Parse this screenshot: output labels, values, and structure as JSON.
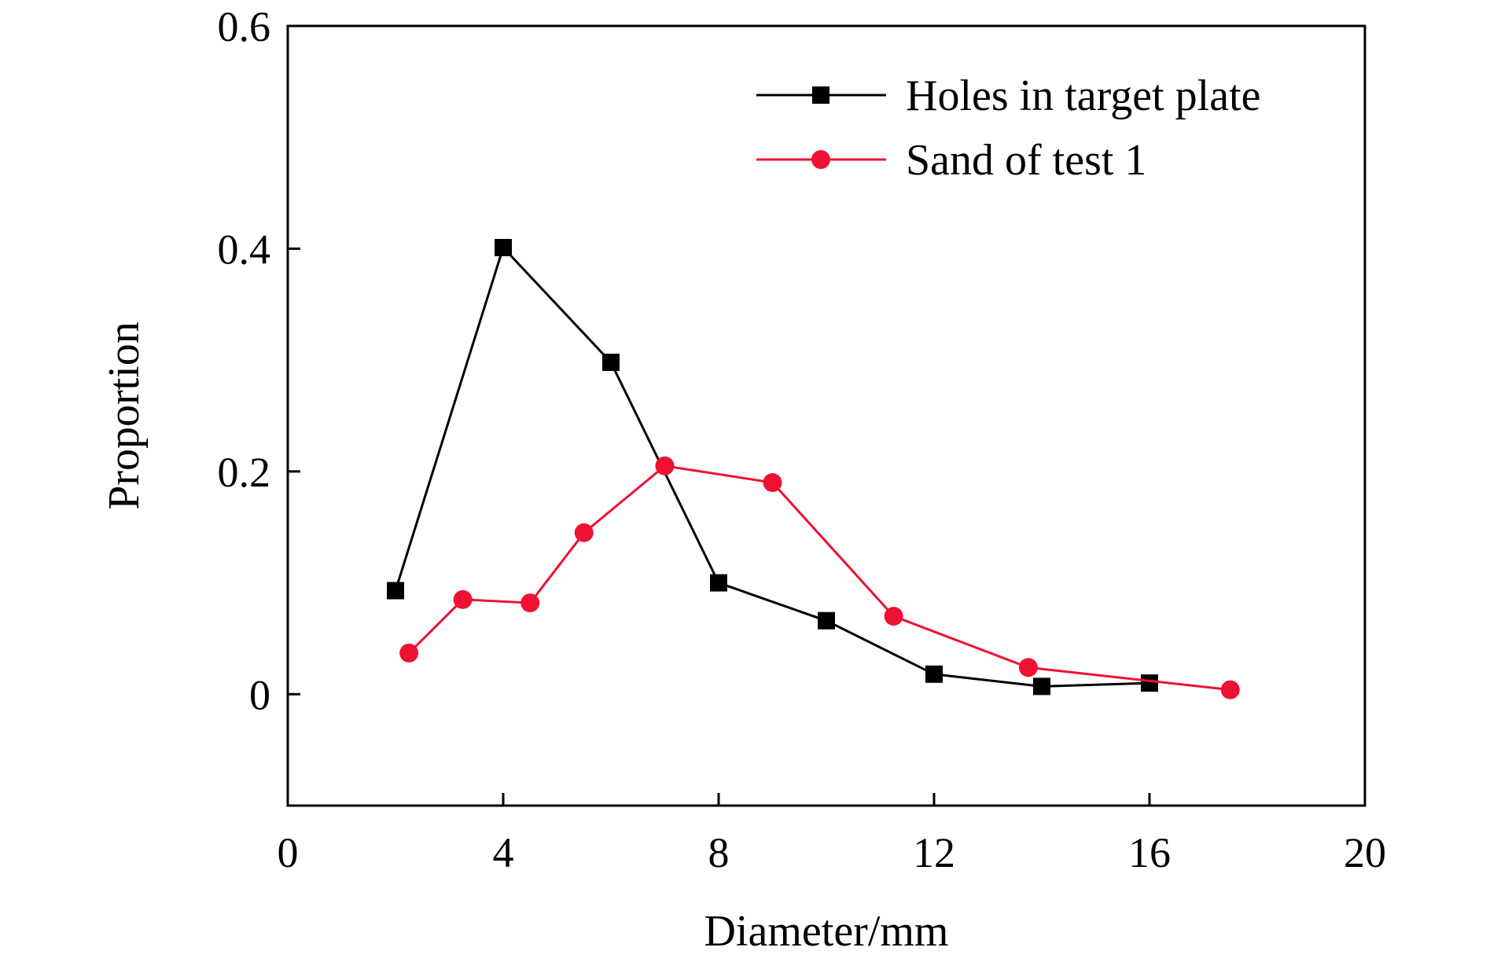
{
  "chart_data": {
    "type": "line",
    "title": "",
    "xlabel": "Diameter/mm",
    "ylabel": "Proportion",
    "xlim": [
      0,
      20
    ],
    "ylim": [
      -0.1,
      0.6
    ],
    "xticks": [
      0,
      4,
      8,
      12,
      16,
      20
    ],
    "xtick_labels": [
      "0",
      "4",
      "8",
      "12",
      "16",
      "20"
    ],
    "yticks": [
      0,
      0.2,
      0.4,
      0.6
    ],
    "ytick_labels": [
      "0",
      "0.2",
      "0.4",
      "0.6"
    ],
    "grid": false,
    "legend_position": "top-right",
    "series": [
      {
        "name": "Holes in target plate",
        "color": "#000000",
        "marker": "square",
        "x": [
          2,
          4,
          6,
          8,
          10,
          12,
          14,
          16
        ],
        "y": [
          0.093,
          0.401,
          0.298,
          0.1,
          0.066,
          0.018,
          0.007,
          0.01
        ]
      },
      {
        "name": "Sand of test 1",
        "color": "#ee1133",
        "marker": "circle",
        "x": [
          2.25,
          3.25,
          4.5,
          5.5,
          7,
          9,
          11.25,
          13.75,
          17.5
        ],
        "y": [
          0.037,
          0.085,
          0.082,
          0.145,
          0.205,
          0.19,
          0.07,
          0.024,
          0.004
        ]
      }
    ]
  }
}
